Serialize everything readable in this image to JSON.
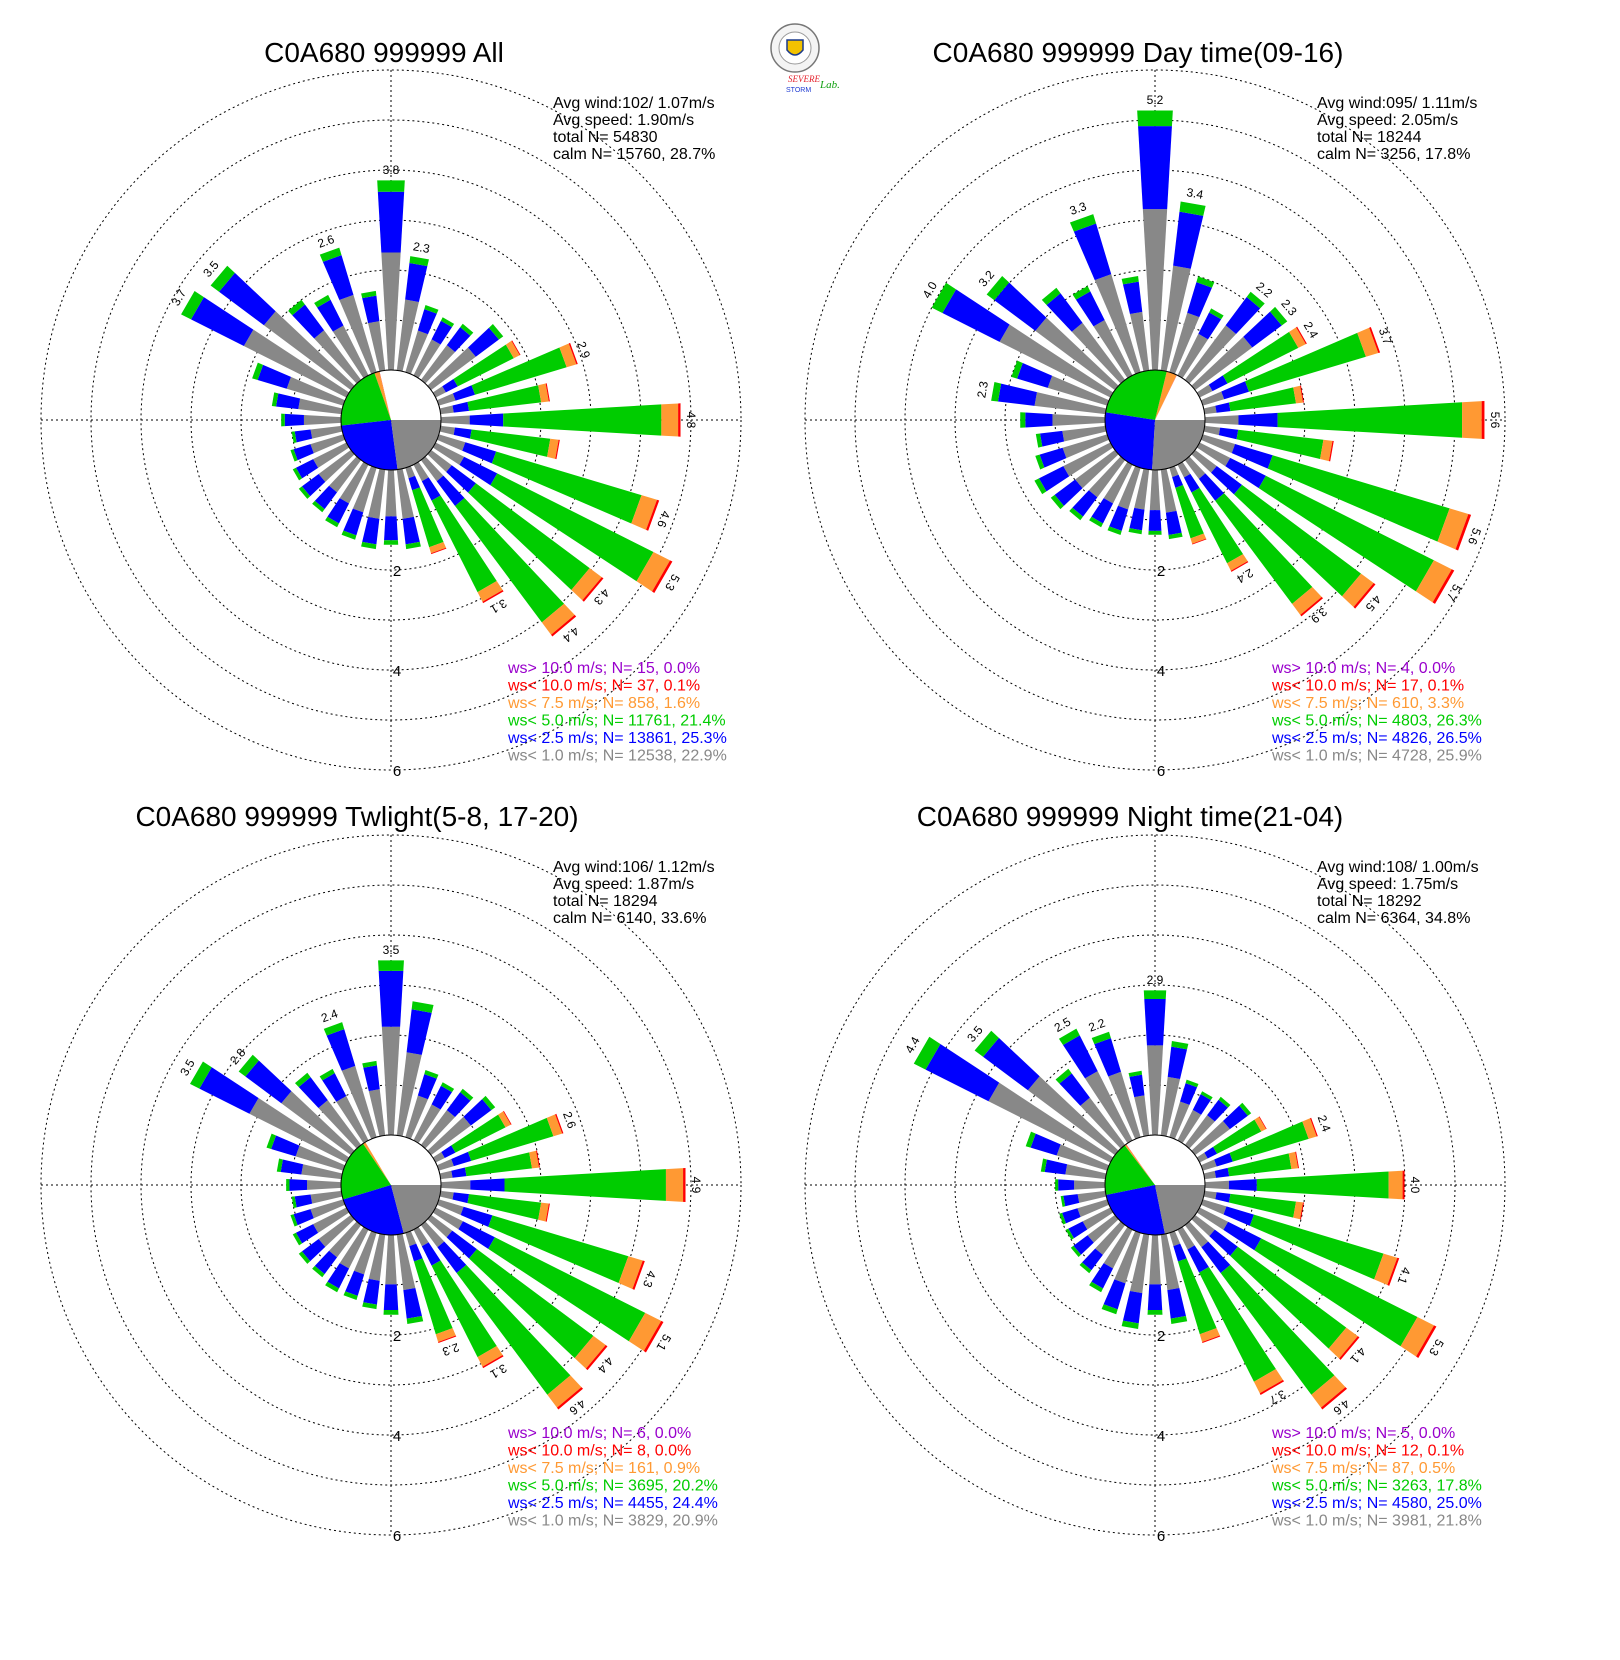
{
  "logo": {
    "text_line1": "SEVERE",
    "text_line2": "STORM",
    "text_suffix": "Lab."
  },
  "legend_colors": {
    ">10.0": "#9900cc",
    "<10.0": "#ff0000",
    "<7.5": "#ff9933",
    "<5.0": "#00cc00",
    "<2.5": "#0000ff",
    "<1.0": "#888888"
  },
  "chart_data": [
    {
      "type": "polar-bar (wind rose)",
      "title": "C0A680 999999 All",
      "stats": [
        "Avg wind:102/ 1.07m/s",
        "Avg speed: 1.90m/s",
        "total N=      54830",
        "calm N=  15760,  28.7%"
      ],
      "radial_ticks": [
        "2",
        "4",
        "6"
      ],
      "rmax": 8,
      "calm_pie": [
        28.7,
        0.0,
        0.1,
        1.6,
        21.4,
        25.3,
        22.9
      ],
      "sector_width_deg": 10,
      "directions_deg": [
        0,
        10,
        20,
        30,
        40,
        50,
        60,
        70,
        80,
        90,
        100,
        110,
        120,
        130,
        140,
        150,
        160,
        170,
        180,
        190,
        200,
        210,
        220,
        230,
        240,
        250,
        260,
        270,
        280,
        290,
        300,
        310,
        320,
        330,
        340,
        350
      ],
      "spokes": [
        3.8,
        2.3,
        1.4,
        1.3,
        1.4,
        1.8,
        1.9,
        2.9,
        2.2,
        4.8,
        2.4,
        4.6,
        5.3,
        4.3,
        4.4,
        3.1,
        1.8,
        1.6,
        1.5,
        1.6,
        1.5,
        1.4,
        1.3,
        1.3,
        1.2,
        1.1,
        1.0,
        1.2,
        1.4,
        1.9,
        3.7,
        3.5,
        2.0,
        1.8,
        2.6,
        1.6
      ],
      "value_labels": [
        {
          "deg": 0,
          "text": "3.8"
        },
        {
          "deg": 10,
          "text": "2.3"
        },
        {
          "deg": 70,
          "text": "2.9"
        },
        {
          "deg": 90,
          "text": "4.8"
        },
        {
          "deg": 110,
          "text": "4.6"
        },
        {
          "deg": 120,
          "text": "5.3"
        },
        {
          "deg": 130,
          "text": "4.3"
        },
        {
          "deg": 140,
          "text": "4.4"
        },
        {
          "deg": 150,
          "text": "3.1"
        },
        {
          "deg": 300,
          "text": "3.7"
        },
        {
          "deg": 310,
          "text": "3.5"
        },
        {
          "deg": 340,
          "text": "2.6"
        }
      ],
      "legend": [
        {
          "text": "ws> 10.0 m/s; N=   15,  0.0%",
          "key": ">10.0"
        },
        {
          "text": "ws< 10.0 m/s; N=   37,  0.1%",
          "key": "<10.0"
        },
        {
          "text": "ws<  7.5 m/s; N=  858,  1.6%",
          "key": "<7.5"
        },
        {
          "text": "ws<  5.0 m/s; N= 11761, 21.4%",
          "key": "<5.0"
        },
        {
          "text": "ws<  2.5 m/s; N= 13861, 25.3%",
          "key": "<2.5"
        },
        {
          "text": "ws<  1.0 m/s; N= 12538, 22.9%",
          "key": "<1.0"
        }
      ]
    },
    {
      "type": "polar-bar (wind rose)",
      "title": "C0A680 999999 Day time(09-16)",
      "stats": [
        "Avg wind:095/ 1.11m/s",
        "Avg speed: 2.05m/s",
        "total N=      18244",
        "calm N=   3256,  17.8%"
      ],
      "radial_ticks": [
        "2",
        "4",
        "6"
      ],
      "rmax": 8,
      "calm_pie": [
        17.8,
        0.0,
        0.1,
        3.3,
        26.3,
        26.5,
        25.9
      ],
      "sector_width_deg": 10,
      "directions_deg": [
        0,
        10,
        20,
        30,
        40,
        50,
        60,
        70,
        80,
        90,
        100,
        110,
        120,
        130,
        140,
        150,
        160,
        170,
        180,
        190,
        200,
        210,
        220,
        230,
        240,
        250,
        260,
        270,
        280,
        290,
        300,
        310,
        320,
        330,
        340,
        350
      ],
      "spokes": [
        5.2,
        3.4,
        2.0,
        1.5,
        2.2,
        2.3,
        2.4,
        3.7,
        2.0,
        5.6,
        2.6,
        5.6,
        5.7,
        4.5,
        3.9,
        2.4,
        1.6,
        1.4,
        1.3,
        1.3,
        1.4,
        1.4,
        1.5,
        1.6,
        1.7,
        1.5,
        1.4,
        1.7,
        2.3,
        2.0,
        4.0,
        3.2,
        2.3,
        2.0,
        3.3,
        1.9
      ],
      "value_labels": [
        {
          "deg": 0,
          "text": "5.2"
        },
        {
          "deg": 10,
          "text": "3.4"
        },
        {
          "deg": 40,
          "text": "2.2"
        },
        {
          "deg": 50,
          "text": "2.3"
        },
        {
          "deg": 60,
          "text": "2.4"
        },
        {
          "deg": 70,
          "text": "3.7"
        },
        {
          "deg": 90,
          "text": "5.6"
        },
        {
          "deg": 110,
          "text": "5.6"
        },
        {
          "deg": 120,
          "text": "5.7"
        },
        {
          "deg": 130,
          "text": "4.5"
        },
        {
          "deg": 140,
          "text": "3.9"
        },
        {
          "deg": 150,
          "text": "2.4"
        },
        {
          "deg": 280,
          "text": "2.3"
        },
        {
          "deg": 300,
          "text": "4.0"
        },
        {
          "deg": 310,
          "text": "3.2"
        },
        {
          "deg": 340,
          "text": "3.3"
        }
      ],
      "legend": [
        {
          "text": "ws> 10.0 m/s; N=    4,  0.0%",
          "key": ">10.0"
        },
        {
          "text": "ws< 10.0 m/s; N=   17,  0.1%",
          "key": "<10.0"
        },
        {
          "text": "ws<  7.5 m/s; N=  610,  3.3%",
          "key": "<7.5"
        },
        {
          "text": "ws<  5.0 m/s; N=  4803, 26.3%",
          "key": "<5.0"
        },
        {
          "text": "ws<  2.5 m/s; N=  4826, 26.5%",
          "key": "<2.5"
        },
        {
          "text": "ws<  1.0 m/s; N=  4728, 25.9%",
          "key": "<1.0"
        }
      ]
    },
    {
      "type": "polar-bar (wind rose)",
      "title": "C0A680 999999 Twlight(5-8, 17-20)",
      "stats": [
        "Avg wind:106/ 1.12m/s",
        "Avg speed: 1.87m/s",
        "total N=      18294",
        "calm N=   6140,  33.6%"
      ],
      "radial_ticks": [
        "2",
        "4",
        "6"
      ],
      "rmax": 8,
      "calm_pie": [
        33.6,
        0.0,
        0.0,
        0.9,
        20.2,
        24.4,
        20.9
      ],
      "sector_width_deg": 10,
      "directions_deg": [
        0,
        10,
        20,
        30,
        40,
        50,
        60,
        70,
        80,
        90,
        100,
        110,
        120,
        130,
        140,
        150,
        160,
        170,
        180,
        190,
        200,
        210,
        220,
        230,
        240,
        250,
        260,
        270,
        280,
        290,
        300,
        310,
        320,
        330,
        340,
        350
      ],
      "spokes": [
        3.5,
        2.7,
        1.4,
        1.3,
        1.4,
        1.6,
        1.7,
        2.6,
        2.0,
        4.9,
        2.2,
        4.3,
        5.1,
        4.4,
        4.6,
        3.1,
        2.3,
        1.8,
        1.6,
        1.5,
        1.4,
        1.4,
        1.3,
        1.3,
        1.2,
        1.1,
        1.0,
        1.1,
        1.3,
        1.6,
        3.5,
        2.8,
        1.8,
        1.6,
        2.4,
        1.5
      ],
      "value_labels": [
        {
          "deg": 0,
          "text": "3.5"
        },
        {
          "deg": 70,
          "text": "2.6"
        },
        {
          "deg": 90,
          "text": "4.9"
        },
        {
          "deg": 110,
          "text": "4.3"
        },
        {
          "deg": 120,
          "text": "5.1"
        },
        {
          "deg": 130,
          "text": "4.4"
        },
        {
          "deg": 140,
          "text": "4.6"
        },
        {
          "deg": 150,
          "text": "3.1"
        },
        {
          "deg": 160,
          "text": "2.3"
        },
        {
          "deg": 300,
          "text": "3.5"
        },
        {
          "deg": 310,
          "text": "2.8"
        },
        {
          "deg": 340,
          "text": "2.4"
        }
      ],
      "legend": [
        {
          "text": "ws> 10.0 m/s; N=    6,  0.0%",
          "key": ">10.0"
        },
        {
          "text": "ws< 10.0 m/s; N=    8,  0.0%",
          "key": "<10.0"
        },
        {
          "text": "ws<  7.5 m/s; N=  161,  0.9%",
          "key": "<7.5"
        },
        {
          "text": "ws<  5.0 m/s; N=  3695, 20.2%",
          "key": "<5.0"
        },
        {
          "text": "ws<  2.5 m/s; N=  4455, 24.4%",
          "key": "<2.5"
        },
        {
          "text": "ws<  1.0 m/s; N=  3829, 20.9%",
          "key": "<1.0"
        }
      ]
    },
    {
      "type": "polar-bar (wind rose)",
      "title": "C0A680 999999 Night time(21-04)",
      "stats": [
        "Avg wind:108/ 1.00m/s",
        "Avg speed: 1.75m/s",
        "total N=      18292",
        "calm N=   6364,  34.8%"
      ],
      "radial_ticks": [
        "2",
        "4",
        "6"
      ],
      "rmax": 8,
      "calm_pie": [
        34.8,
        0.0,
        0.1,
        0.5,
        17.8,
        25.0,
        21.8
      ],
      "sector_width_deg": 10,
      "directions_deg": [
        0,
        10,
        20,
        30,
        40,
        50,
        60,
        70,
        80,
        90,
        100,
        110,
        120,
        130,
        140,
        150,
        160,
        170,
        180,
        190,
        200,
        210,
        220,
        230,
        240,
        250,
        260,
        270,
        280,
        290,
        300,
        310,
        320,
        330,
        340,
        350
      ],
      "spokes": [
        2.9,
        1.9,
        1.2,
        1.1,
        1.2,
        1.4,
        1.5,
        2.4,
        1.9,
        4.0,
        2.0,
        4.1,
        5.3,
        4.1,
        4.6,
        3.7,
        2.3,
        1.8,
        1.6,
        1.9,
        1.7,
        1.4,
        1.2,
        1.1,
        1.0,
        1.0,
        0.9,
        1.0,
        1.3,
        1.7,
        4.4,
        3.5,
        1.9,
        2.5,
        2.2,
        1.3
      ],
      "value_labels": [
        {
          "deg": 0,
          "text": "2.9"
        },
        {
          "deg": 70,
          "text": "2.4"
        },
        {
          "deg": 90,
          "text": "4.0"
        },
        {
          "deg": 110,
          "text": "4.1"
        },
        {
          "deg": 120,
          "text": "5.3"
        },
        {
          "deg": 130,
          "text": "4.1"
        },
        {
          "deg": 140,
          "text": "4.6"
        },
        {
          "deg": 150,
          "text": "3.7"
        },
        {
          "deg": 300,
          "text": "4.4"
        },
        {
          "deg": 310,
          "text": "3.5"
        },
        {
          "deg": 330,
          "text": "2.5"
        },
        {
          "deg": 340,
          "text": "2.2"
        }
      ],
      "legend": [
        {
          "text": "ws> 10.0 m/s; N=    5,  0.0%",
          "key": ">10.0"
        },
        {
          "text": "ws< 10.0 m/s; N=   12,  0.1%",
          "key": "<10.0"
        },
        {
          "text": "ws<  7.5 m/s; N=   87,  0.5%",
          "key": "<7.5"
        },
        {
          "text": "ws<  5.0 m/s; N=  3263, 17.8%",
          "key": "<5.0"
        },
        {
          "text": "ws<  2.5 m/s; N=  4580, 25.0%",
          "key": "<2.5"
        },
        {
          "text": "ws<  1.0 m/s; N=  3981, 21.8%",
          "key": "<1.0"
        }
      ]
    }
  ]
}
